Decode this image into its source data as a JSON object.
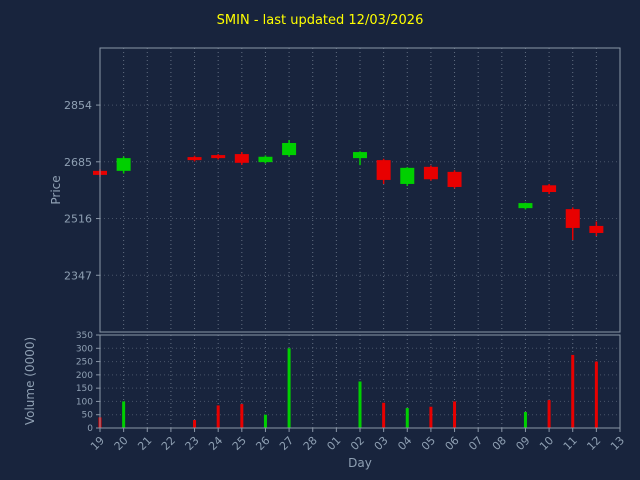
{
  "title": "SMIN - last updated 12/03/2026",
  "colors": {
    "background": "#18243d",
    "title": "#ffff00",
    "up": "#00d000",
    "down": "#e80000",
    "frame": "#8a97a8",
    "grid": "#707c8e",
    "tick_text": "#8fa0b3"
  },
  "chart_data": {
    "type": "candlestick",
    "title": "SMIN - last updated 12/03/2026",
    "xlabel": "Day",
    "ylabel_price": "Price",
    "ylabel_volume": "Volume (0000)",
    "grid": true,
    "x_categories": [
      "19",
      "20",
      "21",
      "22",
      "23",
      "24",
      "25",
      "26",
      "27",
      "28",
      "01",
      "02",
      "03",
      "04",
      "05",
      "06",
      "07",
      "08",
      "09",
      "10",
      "11",
      "12",
      "13"
    ],
    "price_ticks": [
      2347,
      2516,
      2685,
      2854
    ],
    "price_ylim": [
      2178,
      3024
    ],
    "volume_ticks": [
      0,
      50,
      100,
      150,
      200,
      250,
      300,
      350
    ],
    "volume_ylim": [
      0,
      350
    ],
    "candles": [
      {
        "day": "19",
        "open": 2658,
        "high": 2663,
        "low": 2640,
        "close": 2646,
        "volume": 40
      },
      {
        "day": "20",
        "open": 2658,
        "high": 2701,
        "low": 2650,
        "close": 2696,
        "volume": 100
      },
      {
        "day": "23",
        "open": 2699,
        "high": 2703,
        "low": 2686,
        "close": 2690,
        "volume": 30
      },
      {
        "day": "24",
        "open": 2705,
        "high": 2708,
        "low": 2692,
        "close": 2696,
        "volume": 85
      },
      {
        "day": "25",
        "open": 2708,
        "high": 2714,
        "low": 2676,
        "close": 2682,
        "volume": 90
      },
      {
        "day": "26",
        "open": 2684,
        "high": 2704,
        "low": 2680,
        "close": 2700,
        "volume": 50
      },
      {
        "day": "27",
        "open": 2705,
        "high": 2750,
        "low": 2700,
        "close": 2741,
        "volume": 300
      },
      {
        "day": "02",
        "open": 2696,
        "high": 2716,
        "low": 2675,
        "close": 2714,
        "volume": 175
      },
      {
        "day": "03",
        "open": 2690,
        "high": 2694,
        "low": 2619,
        "close": 2631,
        "volume": 95
      },
      {
        "day": "04",
        "open": 2619,
        "high": 2669,
        "low": 2613,
        "close": 2667,
        "volume": 75
      },
      {
        "day": "05",
        "open": 2670,
        "high": 2674,
        "low": 2629,
        "close": 2633,
        "volume": 80
      },
      {
        "day": "06",
        "open": 2655,
        "high": 2660,
        "low": 2606,
        "close": 2610,
        "volume": 100
      },
      {
        "day": "09",
        "open": 2547,
        "high": 2563,
        "low": 2543,
        "close": 2562,
        "volume": 60
      },
      {
        "day": "10",
        "open": 2615,
        "high": 2619,
        "low": 2589,
        "close": 2595,
        "volume": 105
      },
      {
        "day": "11",
        "open": 2544,
        "high": 2549,
        "low": 2452,
        "close": 2488,
        "volume": 275
      },
      {
        "day": "12",
        "open": 2494,
        "high": 2507,
        "low": 2464,
        "close": 2473,
        "volume": 250
      }
    ]
  }
}
